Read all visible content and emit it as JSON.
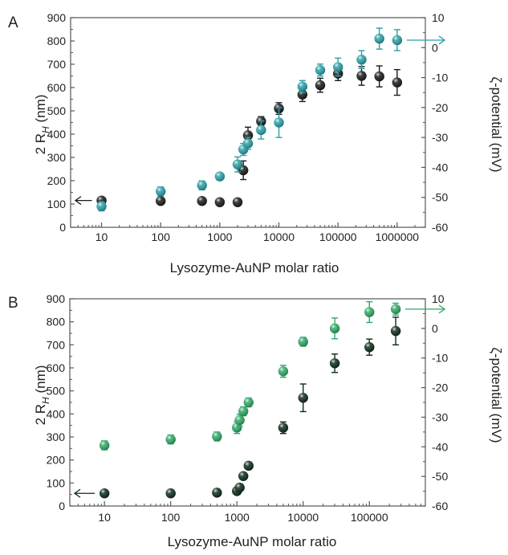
{
  "chart_data": [
    {
      "panel_label": "A",
      "type": "scatter",
      "xlabel": "Lysozyme-AuNP molar ratio",
      "ylabel_main": "2 R",
      "ylabel_sub": "H",
      "ylabel_unit": " (nm)",
      "y2label": "ζ-potential (mV)",
      "x_scale": "log",
      "xlim": [
        3,
        3000000
      ],
      "ylim": [
        0,
        900
      ],
      "y2lim": [
        -60,
        10
      ],
      "x_ticks": [
        10,
        100,
        1000,
        10000,
        100000,
        1000000
      ],
      "x_tick_labels": [
        "10",
        "100",
        "1000",
        "10000",
        "100000",
        "1000000"
      ],
      "y_ticks": [
        0,
        100,
        200,
        300,
        400,
        500,
        600,
        700,
        800,
        900
      ],
      "y2_ticks": [
        -60,
        -50,
        -40,
        -30,
        -20,
        -10,
        0,
        10
      ],
      "series": [
        {
          "axis": "left",
          "color": "#1a1a1a",
          "arrow": "left",
          "points": [
            {
              "x": 10,
              "y": 115,
              "err": 10
            },
            {
              "x": 100,
              "y": 113,
              "err": 8
            },
            {
              "x": 500,
              "y": 113,
              "err": 8
            },
            {
              "x": 1000,
              "y": 108,
              "err": 8
            },
            {
              "x": 2000,
              "y": 108,
              "err": 8
            },
            {
              "x": 2500,
              "y": 245,
              "err": 40
            },
            {
              "x": 3000,
              "y": 395,
              "err": 35
            },
            {
              "x": 5000,
              "y": 455,
              "err": 20
            },
            {
              "x": 10000,
              "y": 510,
              "err": 25
            },
            {
              "x": 25000,
              "y": 570,
              "err": 30
            },
            {
              "x": 50000,
              "y": 610,
              "err": 30
            },
            {
              "x": 100000,
              "y": 660,
              "err": 30
            },
            {
              "x": 250000,
              "y": 650,
              "err": 40
            },
            {
              "x": 500000,
              "y": 648,
              "err": 45
            },
            {
              "x": 1000000,
              "y": 622,
              "err": 55
            }
          ]
        },
        {
          "axis": "right",
          "color": "#2a9fa6",
          "arrow": "right",
          "points": [
            {
              "x": 10,
              "y": -53,
              "err": 1.5
            },
            {
              "x": 100,
              "y": -48,
              "err": 1.5
            },
            {
              "x": 500,
              "y": -46,
              "err": 1.5
            },
            {
              "x": 1000,
              "y": -43,
              "err": 1.2
            },
            {
              "x": 2000,
              "y": -39,
              "err": 2.5
            },
            {
              "x": 2500,
              "y": -34,
              "err": 2
            },
            {
              "x": 3000,
              "y": -32,
              "err": 2
            },
            {
              "x": 5000,
              "y": -27.5,
              "err": 3
            },
            {
              "x": 10000,
              "y": -25,
              "err": 5
            },
            {
              "x": 25000,
              "y": -13,
              "err": 2
            },
            {
              "x": 50000,
              "y": -7.5,
              "err": 2
            },
            {
              "x": 100000,
              "y": -6.5,
              "err": 3
            },
            {
              "x": 250000,
              "y": -4,
              "err": 3
            },
            {
              "x": 500000,
              "y": 3,
              "err": 3.5
            },
            {
              "x": 1000000,
              "y": 2.5,
              "err": 3.5
            }
          ]
        }
      ]
    },
    {
      "panel_label": "B",
      "type": "scatter",
      "xlabel": "Lysozyme-AuNP molar ratio",
      "ylabel_main": "2 R",
      "ylabel_sub": "H",
      "ylabel_unit": " (nm)",
      "y2label": "ζ-potential (mV)",
      "x_scale": "log",
      "xlim": [
        3,
        700000
      ],
      "ylim": [
        0,
        900
      ],
      "y2lim": [
        -60,
        10
      ],
      "x_ticks": [
        10,
        100,
        1000,
        10000,
        100000
      ],
      "x_tick_labels": [
        "10",
        "100",
        "1000",
        "10000",
        "100000"
      ],
      "y_ticks": [
        0,
        100,
        200,
        300,
        400,
        500,
        600,
        700,
        800,
        900
      ],
      "y2_ticks": [
        -60,
        -50,
        -40,
        -30,
        -20,
        -10,
        0,
        10
      ],
      "series": [
        {
          "axis": "left",
          "color": "#0d2b1a",
          "arrow": "left",
          "points": [
            {
              "x": 10,
              "y": 55,
              "err": 8
            },
            {
              "x": 100,
              "y": 55,
              "err": 8
            },
            {
              "x": 500,
              "y": 58,
              "err": 8
            },
            {
              "x": 1000,
              "y": 65,
              "err": 8
            },
            {
              "x": 1100,
              "y": 80,
              "err": 10
            },
            {
              "x": 1250,
              "y": 130,
              "err": 12
            },
            {
              "x": 1500,
              "y": 175,
              "err": 15
            },
            {
              "x": 5000,
              "y": 340,
              "err": 25
            },
            {
              "x": 10000,
              "y": 470,
              "err": 60
            },
            {
              "x": 30000,
              "y": 620,
              "err": 40
            },
            {
              "x": 100000,
              "y": 690,
              "err": 35
            },
            {
              "x": 250000,
              "y": 760,
              "err": 60
            }
          ]
        },
        {
          "axis": "right",
          "color": "#2fa866",
          "arrow": "right",
          "points": [
            {
              "x": 10,
              "y": -39.5,
              "err": 1.5
            },
            {
              "x": 100,
              "y": -37.5,
              "err": 1.5
            },
            {
              "x": 500,
              "y": -36.5,
              "err": 1.5
            },
            {
              "x": 1000,
              "y": -33.5,
              "err": 2
            },
            {
              "x": 1100,
              "y": -31,
              "err": 2
            },
            {
              "x": 1250,
              "y": -28,
              "err": 1.5
            },
            {
              "x": 1500,
              "y": -25,
              "err": 1.5
            },
            {
              "x": 5000,
              "y": -14.5,
              "err": 2
            },
            {
              "x": 10000,
              "y": -4.5,
              "err": 1.5
            },
            {
              "x": 30000,
              "y": 0,
              "err": 3.5
            },
            {
              "x": 100000,
              "y": 5.5,
              "err": 3.5
            },
            {
              "x": 250000,
              "y": 6.5,
              "err": 2
            }
          ]
        }
      ]
    }
  ]
}
